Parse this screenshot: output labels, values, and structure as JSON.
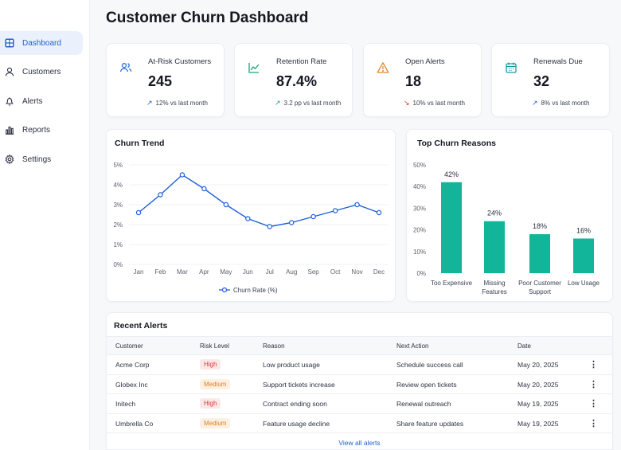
{
  "sidebar": {
    "items": [
      {
        "label": "Dashboard",
        "icon": "grid-icon",
        "active": true
      },
      {
        "label": "Customers",
        "icon": "user-icon",
        "active": false
      },
      {
        "label": "Alerts",
        "icon": "bell-icon",
        "active": false
      },
      {
        "label": "Reports",
        "icon": "bar-chart-icon",
        "active": false
      },
      {
        "label": "Settings",
        "icon": "gear-icon",
        "active": false
      }
    ]
  },
  "header": {
    "title": "Customer Churn Dashboard"
  },
  "stats": [
    {
      "label": "At-Risk Customers",
      "value": "245",
      "trend": "12% vs last month",
      "trend_dir": "up",
      "icon": "users-icon",
      "icon_bg": "#e6eefb",
      "icon_color": "#2f6fe0"
    },
    {
      "label": "Retention Rate",
      "value": "87.4%",
      "trend": "3.2 pp vs last month",
      "trend_dir": "up",
      "icon": "line-chart-icon",
      "icon_bg": "#e3f6ef",
      "icon_color": "#1aa37a"
    },
    {
      "label": "Open Alerts",
      "value": "18",
      "trend": "10% vs last month",
      "trend_dir": "down",
      "icon": "warning-icon",
      "icon_bg": "#fdf0e2",
      "icon_color": "#e3872d"
    },
    {
      "label": "Renewals Due",
      "value": "32",
      "trend": "8% vs last month",
      "trend_dir": "up",
      "icon": "calendar-icon",
      "icon_bg": "#e3f5f5",
      "icon_color": "#1b9aa0"
    }
  ],
  "colors": {
    "up": "#1f5fd6",
    "down": "#e02d2d",
    "trend_line": "#1f5fd6",
    "bars": "#12b59a"
  },
  "chart_data": [
    {
      "type": "line",
      "title": "Churn Trend",
      "categories": [
        "Jan",
        "Feb",
        "Mar",
        "Apr",
        "May",
        "Jun",
        "Jul",
        "Aug",
        "Sep",
        "Oct",
        "Nov",
        "Dec"
      ],
      "series": [
        {
          "name": "Churn Rate (%)",
          "values": [
            2.6,
            3.5,
            4.5,
            3.8,
            3.0,
            2.3,
            1.9,
            2.1,
            2.4,
            2.7,
            3.0,
            2.6
          ]
        }
      ],
      "y_ticks": [
        "0%",
        "1%",
        "2%",
        "3%",
        "4%",
        "5%"
      ],
      "ylim": [
        0,
        5
      ],
      "grid": true,
      "legend": "bottom"
    },
    {
      "type": "bar",
      "title": "Top Churn Reasons",
      "categories": [
        "Too Expensive",
        "Missing Features",
        "Poor Customer Support",
        "Low Usage"
      ],
      "category_lines": [
        [
          "Too Expensive"
        ],
        [
          "Missing",
          "Features"
        ],
        [
          "Poor Customer",
          "Support"
        ],
        [
          "Low Usage"
        ]
      ],
      "values": [
        42,
        24,
        18,
        16
      ],
      "data_labels": [
        "42%",
        "24%",
        "18%",
        "16%"
      ],
      "y_ticks": [
        "0%",
        "10%",
        "20%",
        "30%",
        "40%",
        "50%"
      ],
      "ylim": [
        0,
        50
      ],
      "grid": false
    }
  ],
  "alerts": {
    "title": "Recent Alerts",
    "columns": [
      "Customer",
      "Risk Level",
      "Reason",
      "Next Action",
      "Date"
    ],
    "rows": [
      {
        "customer": "Acme Corp",
        "risk": "High",
        "reason": "Low product usage",
        "action": "Schedule success call",
        "date": "May 20, 2025"
      },
      {
        "customer": "Globex Inc",
        "risk": "Medium",
        "reason": "Support tickets increase",
        "action": "Review open tickets",
        "date": "May 20, 2025"
      },
      {
        "customer": "Initech",
        "risk": "High",
        "reason": "Contract ending soon",
        "action": "Renewal outreach",
        "date": "May 19, 2025"
      },
      {
        "customer": "Umbrella Co",
        "risk": "Medium",
        "reason": "Feature usage decline",
        "action": "Share feature updates",
        "date": "May 19, 2025"
      }
    ],
    "risk_colors": {
      "High": {
        "bg": "#fde8e8",
        "fg": "#d23b3b"
      },
      "Medium": {
        "bg": "#fdf0e0",
        "fg": "#d9822b"
      }
    },
    "view_all": "View all alerts"
  }
}
